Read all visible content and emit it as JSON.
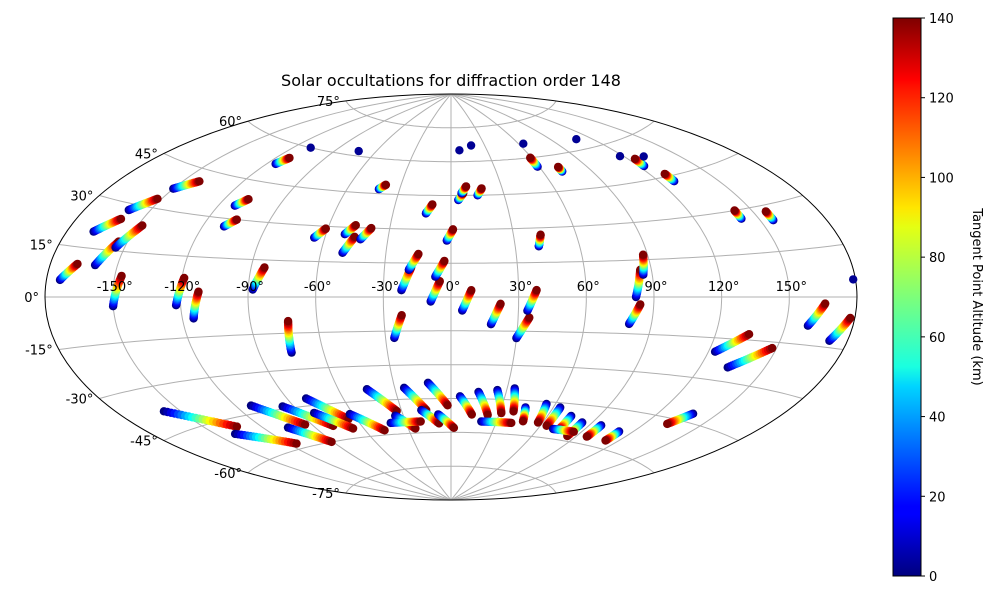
{
  "chart_data": {
    "type": "scatter",
    "projection": "aitoff",
    "title": "Solar occultations for diffraction order 148",
    "lon_ticks": [
      {
        "value": -150,
        "label": "-150°"
      },
      {
        "value": -120,
        "label": "-120°"
      },
      {
        "value": -90,
        "label": "-90°"
      },
      {
        "value": -60,
        "label": "-60°"
      },
      {
        "value": -30,
        "label": "-30°"
      },
      {
        "value": 0,
        "label": "0°"
      },
      {
        "value": 30,
        "label": "30°"
      },
      {
        "value": 60,
        "label": "60°"
      },
      {
        "value": 90,
        "label": "90°"
      },
      {
        "value": 120,
        "label": "120°"
      },
      {
        "value": 150,
        "label": "150°"
      }
    ],
    "lat_ticks": [
      {
        "value": -75,
        "label": "-75°"
      },
      {
        "value": -60,
        "label": "-60°"
      },
      {
        "value": -45,
        "label": "-45°"
      },
      {
        "value": -30,
        "label": "-30°"
      },
      {
        "value": -15,
        "label": "-15°"
      },
      {
        "value": 0,
        "label": "0°"
      },
      {
        "value": 15,
        "label": "15°"
      },
      {
        "value": 30,
        "label": "30°"
      },
      {
        "value": 45,
        "label": "45°"
      },
      {
        "value": 60,
        "label": "60°"
      },
      {
        "value": 75,
        "label": "75°"
      }
    ],
    "colorbar": {
      "label": "Tangent Point Altitude (km)",
      "min": 0,
      "max": 140,
      "ticks": [
        0,
        20,
        40,
        60,
        80,
        100,
        120,
        140
      ],
      "colormap": "jet"
    },
    "occultations": [
      {
        "lon": -174,
        "lat": 5,
        "dlon": 6,
        "dlat": 5
      },
      {
        "lon": -168,
        "lat": 20,
        "dlon": 8,
        "dlat": 5
      },
      {
        "lon": -160,
        "lat": 28,
        "dlon": 8,
        "dlat": 5
      },
      {
        "lon": -150,
        "lat": 37,
        "dlon": 8,
        "dlat": 4
      },
      {
        "lon": -160,
        "lat": 10,
        "dlon": 6,
        "dlat": 8
      },
      {
        "lon": -154,
        "lat": 16,
        "dlon": 6,
        "dlat": 8
      },
      {
        "lon": -150,
        "lat": -3,
        "dlon": 3,
        "dlat": 10
      },
      {
        "lon": -122,
        "lat": -3,
        "dlon": 3,
        "dlat": 10
      },
      {
        "lon": -115,
        "lat": -8,
        "dlon": 3,
        "dlat": 10
      },
      {
        "lon": -112,
        "lat": 35,
        "dlon": 4,
        "dlat": 3
      },
      {
        "lon": -110,
        "lat": 27,
        "dlon": 4,
        "dlat": 3
      },
      {
        "lon": -115,
        "lat": 52,
        "dlon": 3,
        "dlat": 3
      },
      {
        "lon": -109,
        "lat": 60,
        "dlon": 0,
        "dlat": 0
      },
      {
        "lon": -88,
        "lat": 3,
        "dlon": 4,
        "dlat": 9
      },
      {
        "lon": -75,
        "lat": -23,
        "dlon": 2,
        "dlat": 13
      },
      {
        "lon": -65,
        "lat": 25,
        "dlon": 4,
        "dlat": 4
      },
      {
        "lon": -73,
        "lat": 62,
        "dlon": 0,
        "dlat": 0
      },
      {
        "lon": -51,
        "lat": 27,
        "dlon": 4,
        "dlat": 4
      },
      {
        "lon": -50,
        "lat": 19,
        "dlon": 4,
        "dlat": 7
      },
      {
        "lon": -43,
        "lat": 25,
        "dlon": 4,
        "dlat": 5
      },
      {
        "lon": -42,
        "lat": 47,
        "dlon": 3,
        "dlat": 2
      },
      {
        "lon": -26,
        "lat": -18,
        "dlon": 4,
        "dlat": 10
      },
      {
        "lon": -22,
        "lat": 3,
        "dlon": 4,
        "dlat": 10
      },
      {
        "lon": -19,
        "lat": 12,
        "dlon": 4,
        "dlat": 7
      },
      {
        "lon": -13,
        "lat": 37,
        "dlon": 3,
        "dlat": 4
      },
      {
        "lon": -9,
        "lat": -2,
        "dlon": 4,
        "dlat": 9
      },
      {
        "lon": -7,
        "lat": 9,
        "dlon": 4,
        "dlat": 7
      },
      {
        "lon": -2,
        "lat": 25,
        "dlon": 3,
        "dlat": 5
      },
      {
        "lon": 4,
        "lat": 43,
        "dlon": 3,
        "dlat": 3
      },
      {
        "lon": 6,
        "lat": 46,
        "dlon": 3,
        "dlat": 3
      },
      {
        "lon": 7,
        "lat": 65,
        "dlon": 0,
        "dlat": 0
      },
      {
        "lon": 15,
        "lat": 45,
        "dlon": 3,
        "dlat": 3
      },
      {
        "lon": 18,
        "lat": 67,
        "dlon": 0,
        "dlat": 0
      },
      {
        "lon": 5,
        "lat": -6,
        "dlon": 4,
        "dlat": 9
      },
      {
        "lon": 18,
        "lat": -12,
        "dlon": 4,
        "dlat": 9
      },
      {
        "lon": 30,
        "lat": -18,
        "dlon": 5,
        "dlat": 9
      },
      {
        "lon": 34,
        "lat": -6,
        "dlon": 4,
        "dlat": 9
      },
      {
        "lon": 41,
        "lat": 22,
        "dlon": 2,
        "dlat": 5
      },
      {
        "lon": 59,
        "lat": 56,
        "dlon": 0,
        "dlat": 4
      },
      {
        "lon": 64,
        "lat": 66,
        "dlon": 0,
        "dlat": 0
      },
      {
        "lon": 72,
        "lat": 53,
        "dlon": 0,
        "dlat": 2
      },
      {
        "lon": 82,
        "lat": 0,
        "dlon": 3,
        "dlat": 11
      },
      {
        "lon": 86,
        "lat": 9,
        "dlon": 2,
        "dlat": 8
      },
      {
        "lon": 80,
        "lat": -11,
        "dlon": 4,
        "dlat": 8
      },
      {
        "lon": 109,
        "lat": 64,
        "dlon": 0,
        "dlat": 0
      },
      {
        "lon": 118,
        "lat": 55,
        "dlon": 0,
        "dlat": 0
      },
      {
        "lon": 123,
        "lat": 50,
        "dlon": 1,
        "dlat": 3
      },
      {
        "lon": 128,
        "lat": 43,
        "dlon": 0,
        "dlat": 3
      },
      {
        "lon": 131,
        "lat": 53,
        "dlon": 0,
        "dlat": 0
      },
      {
        "lon": 123,
        "lat": -20,
        "dlon": 12,
        "dlat": 7
      },
      {
        "lon": 133,
        "lat": -25,
        "dlon": 15,
        "dlat": 8
      },
      {
        "lon": 142,
        "lat": 27,
        "dlon": 0,
        "dlat": 3
      },
      {
        "lon": 156,
        "lat": 25,
        "dlon": 0,
        "dlat": 3
      },
      {
        "lon": 160,
        "lat": -9,
        "dlon": 6,
        "dlat": 7
      },
      {
        "lon": 172,
        "lat": -13,
        "dlon": 6,
        "dlat": 7
      },
      {
        "lon": 179,
        "lat": 5,
        "dlon": 0,
        "dlat": 0
      },
      {
        "lon": -158,
        "lat": -38,
        "dlon": 25,
        "dlat": -10
      },
      {
        "lon": -140,
        "lat": -50,
        "dlon": 25,
        "dlat": -8
      },
      {
        "lon": -112,
        "lat": -42,
        "dlon": 18,
        "dlat": -10
      },
      {
        "lon": -106,
        "lat": -52,
        "dlon": 15,
        "dlat": -8
      },
      {
        "lon": -96,
        "lat": -44,
        "dlon": 18,
        "dlat": -10
      },
      {
        "lon": -80,
        "lat": -42,
        "dlon": 15,
        "dlat": -10
      },
      {
        "lon": -82,
        "lat": -48,
        "dlon": 15,
        "dlat": -8
      },
      {
        "lon": -62,
        "lat": -50,
        "dlon": 15,
        "dlat": -8
      },
      {
        "lon": -45,
        "lat": -40,
        "dlon": 12,
        "dlat": -10
      },
      {
        "lon": -35,
        "lat": -52,
        "dlon": 10,
        "dlat": -6
      },
      {
        "lon": -25,
        "lat": -40,
        "dlon": 10,
        "dlat": -10
      },
      {
        "lon": -18,
        "lat": -50,
        "dlon": 10,
        "dlat": -6
      },
      {
        "lon": -12,
        "lat": -38,
        "dlon": 10,
        "dlat": -10
      },
      {
        "lon": -8,
        "lat": -52,
        "dlon": 10,
        "dlat": -6
      },
      {
        "lon": 5,
        "lat": -44,
        "dlon": 8,
        "dlat": -8
      },
      {
        "lon": 15,
        "lat": -42,
        "dlon": 8,
        "dlat": -10
      },
      {
        "lon": 25,
        "lat": -41,
        "dlon": 6,
        "dlat": -10
      },
      {
        "lon": 34,
        "lat": -40,
        "dlon": 4,
        "dlat": -10
      },
      {
        "lon": 44,
        "lat": -48,
        "dlon": 3,
        "dlat": -6
      },
      {
        "lon": 55,
        "lat": -46,
        "dlon": 2,
        "dlat": -8
      },
      {
        "lon": 64,
        "lat": -47,
        "dlon": 0,
        "dlat": -8
      },
      {
        "lon": 74,
        "lat": -50,
        "dlon": 0,
        "dlat": -6
      },
      {
        "lon": 84,
        "lat": -52,
        "dlon": 0,
        "dlat": -6
      },
      {
        "lon": 97,
        "lat": -52,
        "dlon": 0,
        "dlat": -5
      },
      {
        "lon": 112,
        "lat": -53,
        "dlon": 0,
        "dlat": -4
      },
      {
        "lon": 138,
        "lat": -42,
        "dlon": -6,
        "dlat": -5
      },
      {
        "lon": 20,
        "lat": -55,
        "dlon": 20,
        "dlat": 0
      },
      {
        "lon": -40,
        "lat": -55,
        "dlon": 20,
        "dlat": 0
      },
      {
        "lon": 70,
        "lat": -56,
        "dlon": 15,
        "dlat": 0
      }
    ]
  }
}
